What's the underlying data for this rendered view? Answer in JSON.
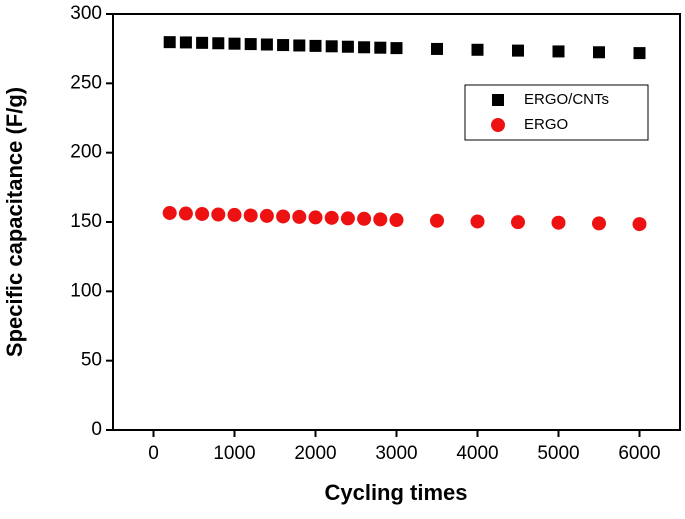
{
  "chart_data": {
    "type": "scatter",
    "xlabel": "Cycling times",
    "ylabel": "Specific capacitance (F/g)",
    "x": [
      200,
      400,
      600,
      800,
      1000,
      1200,
      1400,
      1600,
      1800,
      2000,
      2200,
      2400,
      2600,
      2800,
      3000,
      3500,
      4000,
      4500,
      5000,
      5500,
      6000
    ],
    "series": [
      {
        "name": "ERGO/CNTs",
        "color": "#000000",
        "marker": "square",
        "values": [
          279.7,
          279.5,
          279.2,
          278.9,
          278.6,
          278.3,
          278,
          277.6,
          277.3,
          277,
          276.7,
          276.4,
          276,
          275.7,
          275.4,
          274.8,
          274.2,
          273.6,
          273,
          272.4,
          271.8
        ]
      },
      {
        "name": "ERGO",
        "color": "#ee1111",
        "marker": "circle",
        "values": [
          156.5,
          156.1,
          155.8,
          155.4,
          155.1,
          154.7,
          154.4,
          154,
          153.7,
          153.3,
          153,
          152.6,
          152.3,
          151.9,
          151.4,
          150.9,
          150.4,
          149.9,
          149.5,
          149,
          148.5
        ]
      }
    ],
    "xlim": [
      -500,
      6500
    ],
    "ylim": [
      0,
      300
    ],
    "xticks": [
      0,
      1000,
      2000,
      3000,
      4000,
      5000,
      6000
    ],
    "yticks": [
      0,
      50,
      100,
      150,
      200,
      250,
      300
    ],
    "legend": "upper right"
  }
}
